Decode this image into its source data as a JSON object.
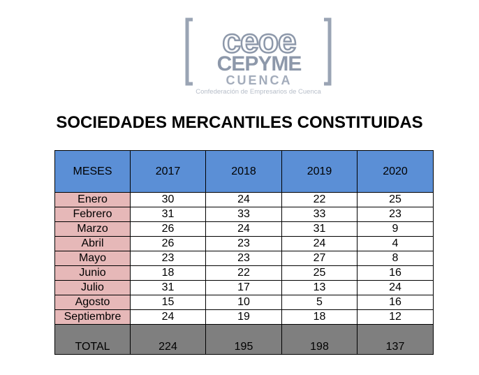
{
  "logo": {
    "line1": "ceoe",
    "line2": "CEPYME",
    "line3": "CUENCA",
    "subtitle": "Confederación de Empresarios de Cuenca",
    "color": "#8d98aa"
  },
  "title": "SOCIEDADES MERCANTILES CONSTITUIDAS",
  "colors": {
    "header_bg": "#5b8fd6",
    "month_bg": "#e6b8b8",
    "total_bg": "#7f7f7f"
  },
  "table": {
    "headers": [
      "MESES",
      "2017",
      "2018",
      "2019",
      "2020"
    ],
    "rows": [
      {
        "month": "Enero",
        "values": [
          "30",
          "24",
          "22",
          "25"
        ]
      },
      {
        "month": "Febrero",
        "values": [
          "31",
          "33",
          "33",
          "23"
        ]
      },
      {
        "month": "Marzo",
        "values": [
          "26",
          "24",
          "31",
          "9"
        ]
      },
      {
        "month": "Abril",
        "values": [
          "26",
          "23",
          "24",
          "4"
        ]
      },
      {
        "month": "Mayo",
        "values": [
          "23",
          "23",
          "27",
          "8"
        ]
      },
      {
        "month": "Junio",
        "values": [
          "18",
          "22",
          "25",
          "16"
        ]
      },
      {
        "month": "Julio",
        "values": [
          "31",
          "17",
          "13",
          "24"
        ]
      },
      {
        "month": "Agosto",
        "values": [
          "15",
          "10",
          "5",
          "16"
        ]
      },
      {
        "month": "Septiembre",
        "values": [
          "24",
          "19",
          "18",
          "12"
        ]
      }
    ],
    "total": {
      "label": "TOTAL",
      "values": [
        "224",
        "195",
        "198",
        "137"
      ]
    }
  }
}
